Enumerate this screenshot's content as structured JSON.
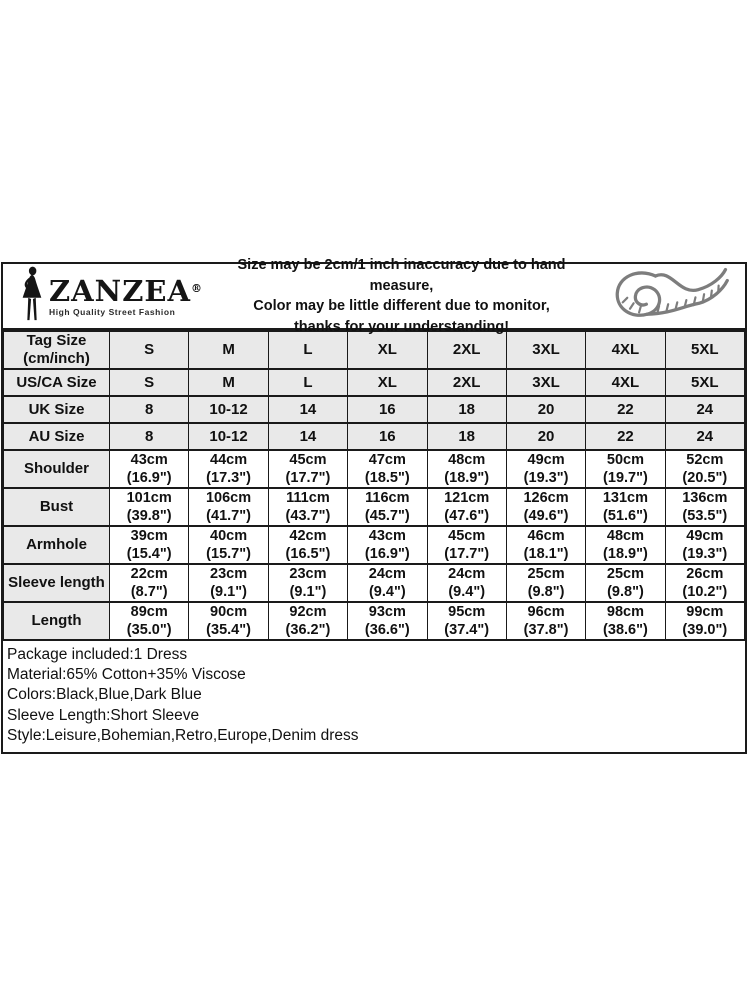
{
  "header": {
    "brand": {
      "name": "ZANZEA",
      "reg": "®",
      "tagline": "High Quality Street Fashion"
    },
    "notice_lines": [
      "Size may be 2cm/1 inch inaccuracy due to hand measure,",
      "Color may be little different due to monitor,",
      "thanks for your understanding!"
    ]
  },
  "size_chart": {
    "rows": [
      {
        "label": "Tag Size\n(cm/inch)",
        "type": "tag-size",
        "values": [
          "S",
          "M",
          "L",
          "XL",
          "2XL",
          "3XL",
          "4XL",
          "5XL"
        ]
      },
      {
        "label": "US/CA Size",
        "type": "size",
        "values": [
          "S",
          "M",
          "L",
          "XL",
          "2XL",
          "3XL",
          "4XL",
          "5XL"
        ]
      },
      {
        "label": "UK Size",
        "type": "size",
        "values": [
          "8",
          "10-12",
          "14",
          "16",
          "18",
          "20",
          "22",
          "24"
        ]
      },
      {
        "label": "AU Size",
        "type": "size",
        "values": [
          "8",
          "10-12",
          "14",
          "16",
          "18",
          "20",
          "22",
          "24"
        ]
      },
      {
        "label": "Shoulder",
        "type": "measure",
        "values": [
          "43cm\n(16.9\")",
          "44cm\n(17.3\")",
          "45cm\n(17.7\")",
          "47cm\n(18.5\")",
          "48cm\n(18.9\")",
          "49cm\n(19.3\")",
          "50cm\n(19.7\")",
          "52cm\n(20.5\")"
        ]
      },
      {
        "label": "Bust",
        "type": "measure",
        "values": [
          "101cm\n(39.8\")",
          "106cm\n(41.7\")",
          "111cm\n(43.7\")",
          "116cm\n(45.7\")",
          "121cm\n(47.6\")",
          "126cm\n(49.6\")",
          "131cm\n(51.6\")",
          "136cm\n(53.5\")"
        ]
      },
      {
        "label": "Armhole",
        "type": "measure",
        "values": [
          "39cm\n(15.4\")",
          "40cm\n(15.7\")",
          "42cm\n(16.5\")",
          "43cm\n(16.9\")",
          "45cm\n(17.7\")",
          "46cm\n(18.1\")",
          "48cm\n(18.9\")",
          "49cm\n(19.3\")"
        ]
      },
      {
        "label": "Sleeve length",
        "type": "measure",
        "values": [
          "22cm\n(8.7\")",
          "23cm\n(9.1\")",
          "23cm\n(9.1\")",
          "24cm\n(9.4\")",
          "24cm\n(9.4\")",
          "25cm\n(9.8\")",
          "25cm\n(9.8\")",
          "26cm\n(10.2\")"
        ]
      },
      {
        "label": "Length",
        "type": "measure",
        "values": [
          "89cm\n(35.0\")",
          "90cm\n(35.4\")",
          "92cm\n(36.2\")",
          "93cm\n(36.6\")",
          "95cm\n(37.4\")",
          "96cm\n(37.8\")",
          "98cm\n(38.6\")",
          "99cm\n(39.0\")"
        ]
      }
    ]
  },
  "product_info_lines": [
    "Package included:1 Dress",
    "Material:65% Cotton+35% Viscose",
    "Colors:Black,Blue,Dark Blue",
    "Sleeve Length:Short Sleeve",
    "Style:Leisure,Bohemian,Retro,Europe,Denim dress"
  ],
  "colors": {
    "row_shade": "#e9e9e9",
    "border": "#1a1a1a",
    "icon_gray": "#7d7d7d"
  }
}
